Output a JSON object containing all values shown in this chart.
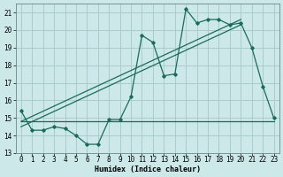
{
  "xlabel": "Humidex (Indice chaleur)",
  "bg_color": "#cce8e8",
  "grid_color": "#aacccc",
  "line_color": "#1a6b5a",
  "xlim": [
    -0.5,
    23.5
  ],
  "ylim": [
    13,
    21.5
  ],
  "yticks": [
    13,
    14,
    15,
    16,
    17,
    18,
    19,
    20,
    21
  ],
  "xticks": [
    0,
    1,
    2,
    3,
    4,
    5,
    6,
    7,
    8,
    9,
    10,
    11,
    12,
    13,
    14,
    15,
    16,
    17,
    18,
    19,
    20,
    21,
    22,
    23
  ],
  "line1_x": [
    0,
    1,
    2,
    3,
    4,
    5,
    6,
    7,
    8,
    9,
    10,
    11,
    12,
    13,
    14,
    15,
    16,
    17,
    18,
    19,
    20,
    21,
    22,
    23
  ],
  "line1_y": [
    15.4,
    14.3,
    14.3,
    14.5,
    14.4,
    14.0,
    13.5,
    13.5,
    14.9,
    14.9,
    16.2,
    19.7,
    19.3,
    17.4,
    17.5,
    21.2,
    20.4,
    20.6,
    20.6,
    20.3,
    20.4,
    19.0,
    16.8,
    15.0
  ],
  "line2_x": [
    0,
    20
  ],
  "line2_y": [
    14.5,
    20.3
  ],
  "line3_x": [
    0,
    20
  ],
  "line3_y": [
    14.8,
    20.6
  ],
  "flat_line_x": [
    0,
    23
  ],
  "flat_line_y": [
    14.8,
    14.8
  ],
  "xlabel_fontsize": 6.0,
  "tick_fontsize": 5.5
}
